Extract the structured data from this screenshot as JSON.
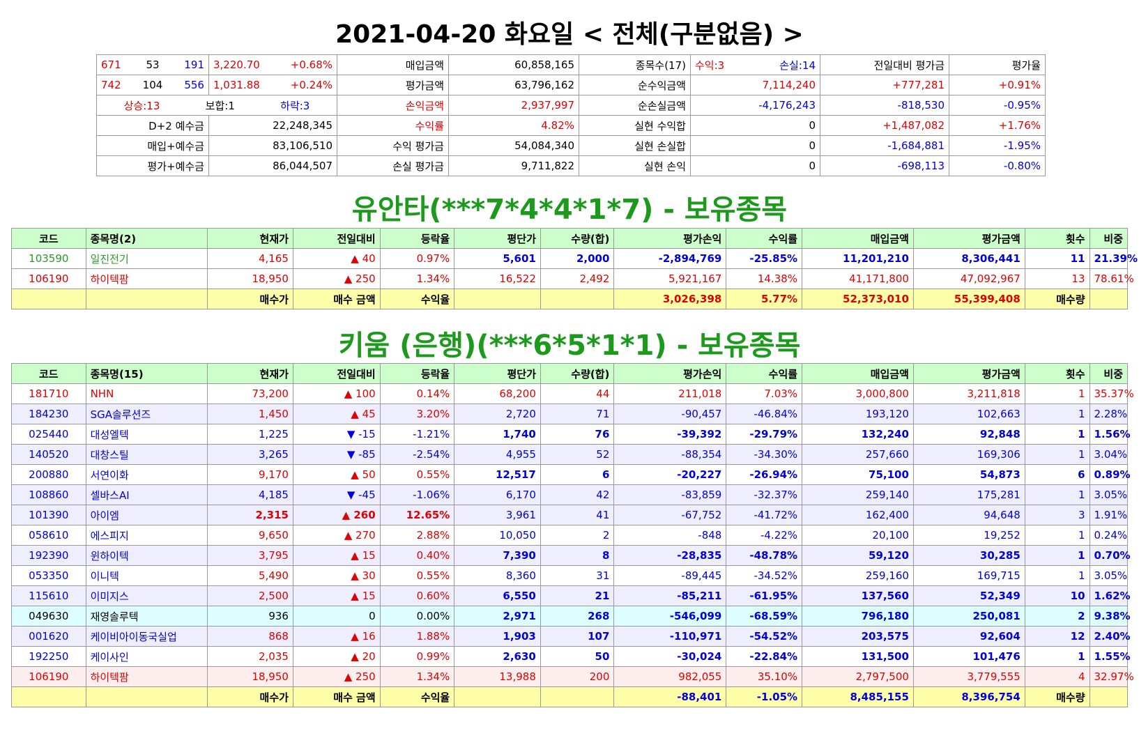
{
  "title": "2021-04-20 화요일 < 전체(구분없음) >",
  "summary": {
    "rows": [
      {
        "cells": [
          [
            "671",
            "53",
            "191"
          ],
          [
            "3,220.70",
            "+0.68%"
          ],
          "매입금액",
          "60,858,165",
          "종목수(17)",
          [
            "수익:3",
            "손실:14"
          ],
          "전일대비 평가금",
          "평가율"
        ],
        "colors": [
          [
            "#e00000",
            "#000000",
            "#0000dd"
          ],
          [
            "#e00000",
            "#e00000"
          ],
          "#000000",
          "#000000",
          "#000000",
          [
            "#e00000",
            "#0000dd"
          ],
          "#000000",
          "#000000"
        ]
      },
      {
        "cells": [
          [
            "742",
            "104",
            "556"
          ],
          [
            "1,031.88",
            "+0.24%"
          ],
          "평가금액",
          "63,796,162",
          "순수익금액",
          "7,114,240",
          "+777,281",
          "+0.91%"
        ],
        "colors": [
          [
            "#e00000",
            "#000000",
            "#0000dd"
          ],
          [
            "#e00000",
            "#e00000"
          ],
          "#000000",
          "#000000",
          "#000000",
          "#e00000",
          "#e00000",
          "#e00000"
        ]
      },
      {
        "cells": [
          [
            "상승:13",
            "보합:1",
            "하락:3"
          ],
          "손익금액",
          "2,937,997",
          "순손실금액",
          "-4,176,243",
          "-818,530",
          "-0.95%"
        ],
        "colors": [
          [
            "#e00000",
            "#000000",
            "#0000dd"
          ],
          "#e00000",
          "#e00000",
          "#000000",
          "#0000dd",
          "#0000dd",
          "#0000dd"
        ]
      },
      {
        "cells": [
          "D+2 예수금",
          "22,248,345",
          "수익률",
          "4.82%",
          "실현 수익합",
          "0",
          "+1,487,082",
          "+1.76%"
        ],
        "colors": [
          "#000000",
          "#000000",
          "#e00000",
          "#e00000",
          "#000000",
          "#000000",
          "#e00000",
          "#e00000"
        ]
      },
      {
        "cells": [
          "매입+예수금",
          "83,106,510",
          "수익 평가금",
          "54,084,340",
          "실현 손실합",
          "0",
          "-1,684,881",
          "-1.95%"
        ],
        "colors": [
          "#000000",
          "#000000",
          "#000000",
          "#000000",
          "#000000",
          "#000000",
          "#0000dd",
          "#0000dd"
        ]
      },
      {
        "cells": [
          "평가+예수금",
          "86,044,507",
          "손실 평가금",
          "9,711,822",
          "실현 손익",
          "0",
          "-698,113",
          "-0.80%"
        ],
        "colors": [
          "#000000",
          "#000000",
          "#000000",
          "#000000",
          "#000000",
          "#000000",
          "#0000dd",
          "#0000dd"
        ]
      }
    ]
  },
  "yuanta": {
    "title": "유안타(***7*4*4*1*7) - 보유종목",
    "header": [
      "코드",
      "종목명(2)",
      "현재가",
      "전일대비",
      "등락율",
      "평단가",
      "수량(합)",
      "평가손익",
      "수익률",
      "매입금액",
      "평가금액",
      "횟수",
      "비중"
    ],
    "rows": [
      {
        "cells": [
          "103590",
          "일진전기",
          "4,165",
          "▲ 40",
          "0.97%",
          "5,601",
          "2,000",
          "-2,894,769",
          "-25.85%",
          "11,201,210",
          "8,306,441",
          "11",
          "21.39%"
        ],
        "bg": "#ffffff",
        "colors": [
          "#2a9a2a",
          "#e00000",
          "#0000dd"
        ],
        "bold": [
          false,
          false,
          true
        ]
      },
      {
        "cells": [
          "106190",
          "하이텍팜",
          "18,950",
          "▲ 250",
          "1.34%",
          "16,522",
          "2,492",
          "5,921,167",
          "14.38%",
          "41,171,800",
          "47,092,967",
          "13",
          "78.61%"
        ],
        "bg": "#ffffff",
        "colors": [
          "#e00000",
          "#e00000",
          "#e00000"
        ],
        "bold": [
          false,
          false,
          false
        ]
      }
    ],
    "footer": [
      null,
      null,
      "매수가",
      "매수 금액",
      "수익율",
      null,
      null,
      "3,026,398",
      "5.77%",
      "52,373,010",
      "55,399,408",
      "매수량",
      null
    ],
    "footer_color": "#e00000"
  },
  "kiwoom": {
    "title": "키움 (은행)(***6*5*1*1) - 보유종목",
    "header": [
      "코드",
      "종목명(15)",
      "현재가",
      "전일대비",
      "등락율",
      "평단가",
      "수량(합)",
      "평가손익",
      "수익률",
      "매입금액",
      "평가금액",
      "횟수",
      "비중"
    ],
    "rows": [
      {
        "cells": [
          "181710",
          "NHN",
          "73,200",
          "▲ 100",
          "0.14%",
          "68,200",
          "44",
          "211,018",
          "7.03%",
          "3,000,800",
          "3,211,818",
          "1",
          "35.37%"
        ],
        "bg": "#ffffff",
        "colors": [
          "#e00000",
          "#e00000",
          "#e00000"
        ],
        "bold": [
          false,
          false,
          false
        ]
      },
      {
        "cells": [
          "184230",
          "SGA솔루션즈",
          "1,450",
          "▲ 45",
          "3.20%",
          "2,720",
          "71",
          "-90,457",
          "-46.84%",
          "193,120",
          "102,663",
          "1",
          "2.28%"
        ],
        "bg": "#eeeeff",
        "colors": [
          "#0000dd",
          "#e00000",
          "#0000dd"
        ],
        "bold": [
          false,
          false,
          false
        ]
      },
      {
        "cells": [
          "025440",
          "대성엘텍",
          "1,225",
          "▼ -15",
          "-1.21%",
          "1,740",
          "76",
          "-39,392",
          "-29.79%",
          "132,240",
          "92,848",
          "1",
          "1.56%"
        ],
        "bg": "#ffffff",
        "colors": [
          "#0000dd",
          "#0000dd",
          "#0000dd"
        ],
        "bold": [
          false,
          false,
          true
        ]
      },
      {
        "cells": [
          "140520",
          "대창스틸",
          "3,265",
          "▼ -85",
          "-2.54%",
          "4,955",
          "52",
          "-88,354",
          "-34.30%",
          "257,660",
          "169,306",
          "1",
          "3.04%"
        ],
        "bg": "#eeeeff",
        "colors": [
          "#0000dd",
          "#0000dd",
          "#0000dd"
        ],
        "bold": [
          false,
          false,
          false
        ]
      },
      {
        "cells": [
          "200880",
          "서연이화",
          "9,170",
          "▲ 50",
          "0.55%",
          "12,517",
          "6",
          "-20,227",
          "-26.94%",
          "75,100",
          "54,873",
          "6",
          "0.89%"
        ],
        "bg": "#ffffff",
        "colors": [
          "#0000dd",
          "#e00000",
          "#0000dd"
        ],
        "bold": [
          false,
          false,
          true
        ]
      },
      {
        "cells": [
          "108860",
          "셀바스AI",
          "4,185",
          "▼ -45",
          "-1.06%",
          "6,170",
          "42",
          "-83,859",
          "-32.37%",
          "259,140",
          "175,281",
          "1",
          "3.05%"
        ],
        "bg": "#eeeeff",
        "colors": [
          "#0000dd",
          "#0000dd",
          "#0000dd"
        ],
        "bold": [
          false,
          false,
          false
        ]
      },
      {
        "cells": [
          "101390",
          "아이엠",
          "2,315",
          "▲ 260",
          "12.65%",
          "3,961",
          "41",
          "-67,752",
          "-41.72%",
          "162,400",
          "94,648",
          "3",
          "1.91%"
        ],
        "bg": "#eeeeff",
        "colors": [
          "#0000dd",
          "#e00000",
          "#0000dd"
        ],
        "bold": [
          false,
          true,
          false
        ]
      },
      {
        "cells": [
          "058610",
          "에스피지",
          "9,650",
          "▲ 270",
          "2.88%",
          "10,050",
          "2",
          "-848",
          "-4.22%",
          "20,100",
          "19,252",
          "1",
          "0.24%"
        ],
        "bg": "#ffffff",
        "colors": [
          "#0000dd",
          "#e00000",
          "#0000dd"
        ],
        "bold": [
          false,
          false,
          false
        ]
      },
      {
        "cells": [
          "192390",
          "윈하이텍",
          "3,795",
          "▲ 15",
          "0.40%",
          "7,390",
          "8",
          "-28,835",
          "-48.78%",
          "59,120",
          "30,285",
          "1",
          "0.70%"
        ],
        "bg": "#eeeeff",
        "colors": [
          "#0000dd",
          "#e00000",
          "#0000dd"
        ],
        "bold": [
          false,
          false,
          true
        ]
      },
      {
        "cells": [
          "053350",
          "이니텍",
          "5,490",
          "▲ 30",
          "0.55%",
          "8,360",
          "31",
          "-89,445",
          "-34.52%",
          "259,160",
          "169,715",
          "1",
          "3.05%"
        ],
        "bg": "#ffffff",
        "colors": [
          "#0000dd",
          "#e00000",
          "#0000dd"
        ],
        "bold": [
          false,
          false,
          false
        ]
      },
      {
        "cells": [
          "115610",
          "이미지스",
          "2,500",
          "▲ 15",
          "0.60%",
          "6,550",
          "21",
          "-85,211",
          "-61.95%",
          "137,560",
          "52,349",
          "10",
          "1.62%"
        ],
        "bg": "#eeeeff",
        "colors": [
          "#0000dd",
          "#e00000",
          "#0000dd"
        ],
        "bold": [
          false,
          false,
          true
        ]
      },
      {
        "cells": [
          "049630",
          "재영솔루텍",
          "936",
          "0",
          "0.00%",
          "2,971",
          "268",
          "-546,099",
          "-68.59%",
          "796,180",
          "250,081",
          "2",
          "9.38%"
        ],
        "bg": "#ddffff",
        "colors": [
          "#000000",
          "#000000",
          "#0000dd"
        ],
        "bold": [
          false,
          false,
          true
        ]
      },
      {
        "cells": [
          "001620",
          "케이비아이동국실업",
          "868",
          "▲ 16",
          "1.88%",
          "1,903",
          "107",
          "-110,971",
          "-54.52%",
          "203,575",
          "92,604",
          "12",
          "2.40%"
        ],
        "bg": "#eeeeff",
        "colors": [
          "#0000dd",
          "#e00000",
          "#0000dd"
        ],
        "bold": [
          false,
          false,
          true
        ]
      },
      {
        "cells": [
          "192250",
          "케이사인",
          "2,035",
          "▲ 20",
          "0.99%",
          "2,630",
          "50",
          "-30,024",
          "-22.84%",
          "131,500",
          "101,476",
          "1",
          "1.55%"
        ],
        "bg": "#ffffff",
        "colors": [
          "#0000dd",
          "#e00000",
          "#0000dd"
        ],
        "bold": [
          false,
          false,
          true
        ]
      },
      {
        "cells": [
          "106190",
          "하이텍팜",
          "18,950",
          "▲ 250",
          "1.34%",
          "13,988",
          "200",
          "982,055",
          "35.10%",
          "2,797,500",
          "3,779,555",
          "4",
          "32.97%"
        ],
        "bg": "#ffeeee",
        "colors": [
          "#e00000",
          "#e00000",
          "#e00000"
        ],
        "bold": [
          false,
          false,
          false
        ]
      }
    ],
    "footer": [
      null,
      null,
      "매수가",
      "매수 금액",
      "수익율",
      null,
      null,
      "-88,401",
      "-1.05%",
      "8,485,155",
      "8,396,754",
      "매수량",
      null
    ],
    "footer_color": "#0000dd"
  }
}
